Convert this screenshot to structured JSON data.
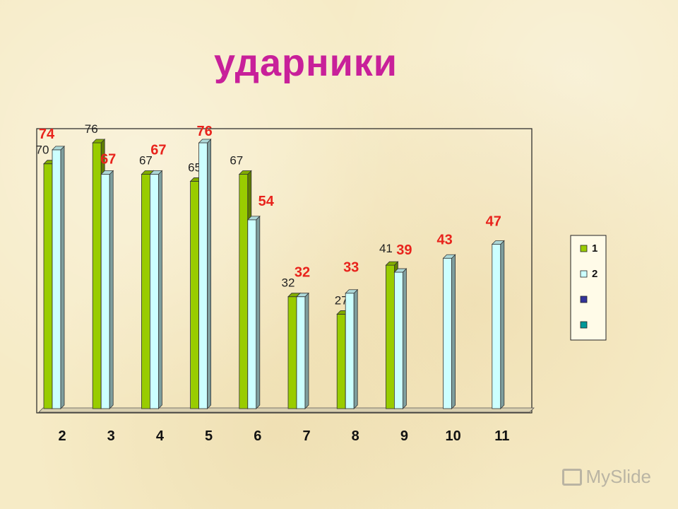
{
  "title": "ударники",
  "watermark": "MySlide",
  "chart_data": {
    "type": "bar",
    "categories": [
      "2",
      "3",
      "4",
      "5",
      "6",
      "7",
      "8",
      "9",
      "10",
      "11"
    ],
    "series": [
      {
        "name": "1",
        "color": "#99cc00",
        "label_color": "#222222",
        "values": [
          70,
          76,
          67,
          65,
          67,
          32,
          27,
          41,
          null,
          null
        ]
      },
      {
        "name": "2",
        "color": "#ccffff",
        "label_color": "#e8231c",
        "values": [
          74,
          67,
          67,
          76,
          54,
          32,
          33,
          39,
          43,
          47
        ]
      }
    ],
    "legend": [
      {
        "label": "1",
        "color": "#99cc00"
      },
      {
        "label": "2",
        "color": "#ccffff"
      },
      {
        "label": "",
        "color": "#333399"
      },
      {
        "label": "",
        "color": "#009999"
      }
    ],
    "legend_position": "right",
    "ylim": [
      0,
      80
    ],
    "grid": false,
    "style": "3d"
  }
}
